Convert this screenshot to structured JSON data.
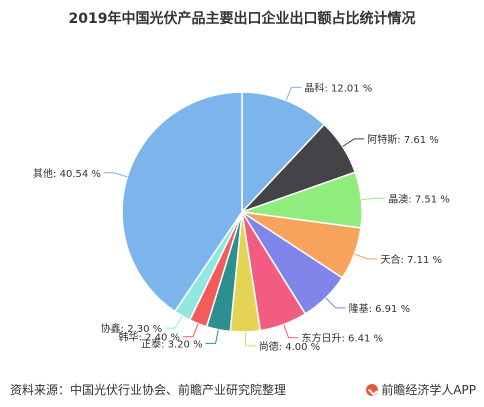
{
  "chart_data": {
    "type": "pie",
    "title": "2019年中国光伏产品主要出口企业出口额占比统计情况",
    "categories": [
      "晶科",
      "阿特斯",
      "晶澳",
      "天合",
      "隆基",
      "东方日升",
      "尚德",
      "正泰",
      "韩华",
      "协鑫",
      "其他"
    ],
    "values": [
      12.01,
      7.61,
      7.51,
      7.11,
      6.91,
      6.41,
      4.0,
      3.2,
      2.4,
      2.3,
      40.54
    ],
    "labels": [
      "晶科: 12.01 %",
      "阿特斯: 7.61 %",
      "晶澳: 7.51 %",
      "天合: 7.11 %",
      "隆基: 6.91 %",
      "东方日升: 6.41 %",
      "尚德: 4.00 %",
      "正泰: 3.20 %",
      "韩华: 2.40 %",
      "协鑫: 2.30 %",
      "其他: 40.54 %"
    ],
    "colors": [
      "#7cb5ec",
      "#434348",
      "#90ed7d",
      "#f7a35c",
      "#8085e9",
      "#f15c80",
      "#e4d354",
      "#2b908f",
      "#f45b5b",
      "#91e8e1",
      "#7cb5ec"
    ],
    "legend": "none"
  },
  "footer": {
    "source": "资料来源：中国光伏行业协会、前瞻产业研究院整理",
    "brand": "前瞻经济学人APP"
  },
  "brand_icon": "brand-logo-icon"
}
